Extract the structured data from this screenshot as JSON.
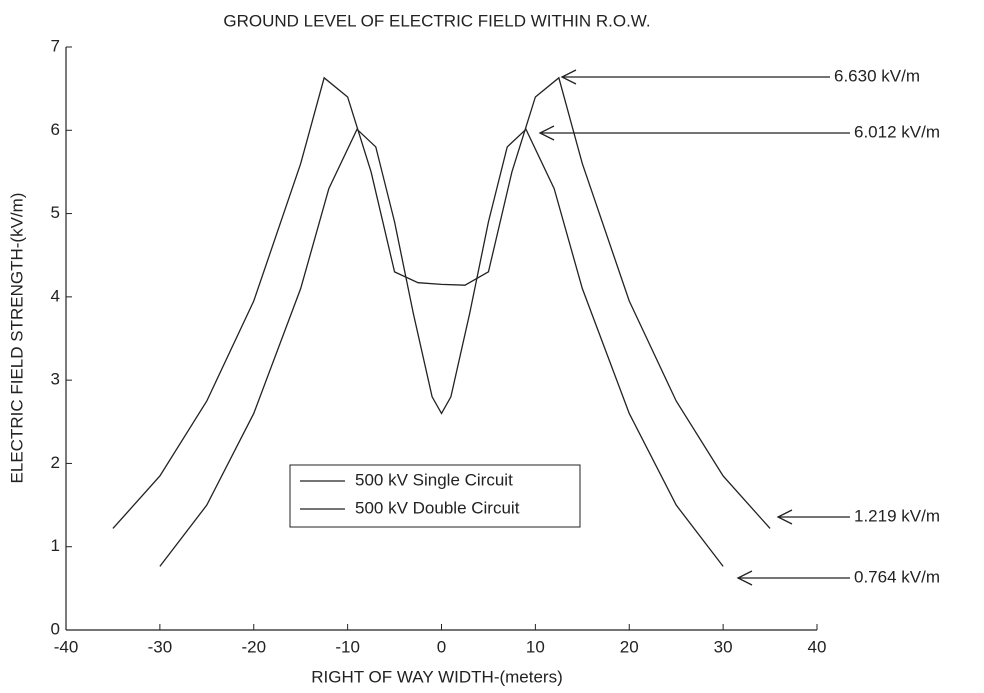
{
  "chart_data": {
    "type": "line",
    "title": "GROUND LEVEL OF ELECTRIC FIELD WITHIN R.O.W.",
    "x_label": "RIGHT OF WAY WIDTH-(meters)",
    "y_label": "ELECTRIC FIELD STRENGTH-(kV/m)",
    "xlim": [
      -40,
      40
    ],
    "ylim": [
      0,
      7
    ],
    "xticks": [
      -40,
      -30,
      -20,
      -10,
      0,
      10,
      20,
      30,
      40
    ],
    "yticks": [
      0,
      1,
      2,
      3,
      4,
      5,
      6,
      7
    ],
    "legend": "lower center",
    "series": [
      {
        "name": "500 kV Single Circuit",
        "color": "#222222",
        "x": [
          -35,
          -30,
          -25,
          -20,
          -15,
          -12.5,
          -10,
          -7.5,
          -5,
          -2.5,
          0,
          2.5,
          5,
          7.5,
          10,
          12.5,
          15,
          20,
          25,
          30,
          35
        ],
        "values": [
          1.219,
          1.85,
          2.75,
          3.95,
          5.6,
          6.63,
          6.4,
          5.5,
          4.3,
          4.17,
          4.15,
          4.14,
          4.3,
          5.5,
          6.4,
          6.63,
          5.6,
          3.95,
          2.75,
          1.85,
          1.219
        ]
      },
      {
        "name": "500 kV Double Circuit",
        "color": "#222222",
        "x": [
          -30,
          -25,
          -20,
          -15,
          -12,
          -9,
          -7,
          -5,
          -3,
          -1,
          0,
          1,
          3,
          5,
          7,
          9,
          12,
          15,
          20,
          25,
          30
        ],
        "values": [
          0.764,
          1.5,
          2.6,
          4.1,
          5.3,
          6.012,
          5.8,
          4.9,
          3.8,
          2.8,
          2.6,
          2.8,
          3.8,
          4.9,
          5.8,
          6.012,
          5.3,
          4.1,
          2.6,
          1.5,
          0.764
        ]
      }
    ],
    "annotations": [
      "6.630 kV/m",
      "6.012 kV/m",
      "1.219 kV/m",
      "0.764 kV/m"
    ]
  }
}
